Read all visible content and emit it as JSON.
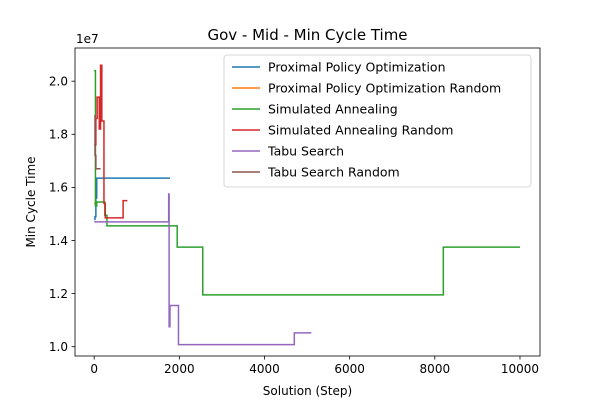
{
  "chart_data": {
    "type": "line",
    "title": "Gov - Mid - Min Cycle Time",
    "xlabel": "Solution (Step)",
    "ylabel": "Min Cycle Time",
    "y_offset_label": "1e7",
    "y_scale_factor": 10000000,
    "xlim": [
      -450,
      10470
    ],
    "ylim": [
      9650000,
      21250000
    ],
    "x_ticks": [
      0,
      2000,
      4000,
      6000,
      8000,
      10000
    ],
    "x_tick_labels": [
      "0",
      "2000",
      "4000",
      "6000",
      "8000",
      "10000"
    ],
    "y_ticks": [
      10000000,
      12000000,
      14000000,
      16000000,
      18000000,
      20000000
    ],
    "y_tick_labels": [
      "1.0",
      "1.2",
      "1.4",
      "1.6",
      "1.8",
      "2.0"
    ],
    "grid": false,
    "legend_position": "top-right",
    "series": [
      {
        "name": "Proximal Policy Optimization",
        "color": "#1f77b4",
        "points": [
          [
            0,
            14800000
          ],
          [
            20,
            14800000
          ],
          [
            20,
            14900000
          ],
          [
            40,
            14900000
          ],
          [
            40,
            15600000
          ],
          [
            60,
            15600000
          ],
          [
            60,
            16350000
          ],
          [
            1780,
            16350000
          ]
        ]
      },
      {
        "name": "Proximal Policy Optimization Random",
        "color": "#ff7f0e",
        "points": [
          [
            0,
            15400000
          ],
          [
            50,
            15400000
          ]
        ]
      },
      {
        "name": "Simulated Annealing",
        "color": "#2ca02c",
        "points": [
          [
            0,
            20400000
          ],
          [
            30,
            20400000
          ],
          [
            30,
            15300000
          ],
          [
            60,
            15300000
          ],
          [
            60,
            15450000
          ],
          [
            250,
            15450000
          ],
          [
            250,
            14950000
          ],
          [
            300,
            14950000
          ],
          [
            300,
            14550000
          ],
          [
            1950,
            14550000
          ],
          [
            1950,
            13750000
          ],
          [
            2550,
            13750000
          ],
          [
            2550,
            11950000
          ],
          [
            8200,
            11950000
          ],
          [
            8200,
            13750000
          ],
          [
            10000,
            13750000
          ]
        ]
      },
      {
        "name": "Simulated Annealing Random",
        "color": "#d62728",
        "points": [
          [
            0,
            17600000
          ],
          [
            40,
            17600000
          ],
          [
            40,
            18600000
          ],
          [
            70,
            18600000
          ],
          [
            70,
            19400000
          ],
          [
            120,
            19400000
          ],
          [
            120,
            18200000
          ],
          [
            150,
            18200000
          ],
          [
            150,
            20600000
          ],
          [
            180,
            20600000
          ],
          [
            180,
            18500000
          ],
          [
            230,
            18500000
          ],
          [
            230,
            15400000
          ],
          [
            260,
            15400000
          ],
          [
            260,
            14850000
          ],
          [
            680,
            14850000
          ],
          [
            680,
            15500000
          ],
          [
            780,
            15500000
          ]
        ]
      },
      {
        "name": "Tabu Search",
        "color": "#9467bd",
        "points": [
          [
            0,
            14700000
          ],
          [
            1750,
            14700000
          ],
          [
            1750,
            15750000
          ],
          [
            1760,
            15750000
          ],
          [
            1760,
            10750000
          ],
          [
            1780,
            10750000
          ],
          [
            1780,
            11550000
          ],
          [
            1980,
            11550000
          ],
          [
            1980,
            10080000
          ],
          [
            4700,
            10080000
          ],
          [
            4700,
            10520000
          ],
          [
            5100,
            10520000
          ]
        ]
      },
      {
        "name": "Tabu Search Random",
        "color": "#8c564b",
        "points": [
          [
            0,
            18700000
          ],
          [
            20,
            18700000
          ],
          [
            20,
            17200000
          ],
          [
            40,
            17200000
          ],
          [
            40,
            16700000
          ],
          [
            150,
            16700000
          ]
        ]
      }
    ]
  }
}
